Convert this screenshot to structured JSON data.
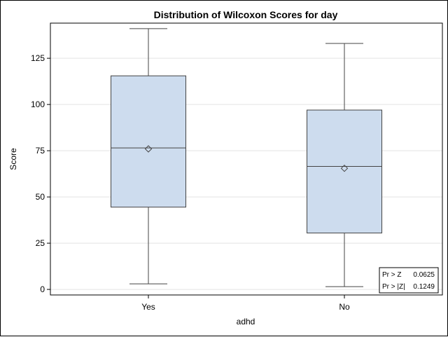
{
  "chart_data": {
    "type": "box",
    "title": "Distribution of Wilcoxon Scores for day",
    "xlabel": "adhd",
    "ylabel": "Score",
    "categories": [
      "Yes",
      "No"
    ],
    "yticks": [
      0,
      25,
      50,
      75,
      100,
      125
    ],
    "ylim": [
      -3,
      144
    ],
    "grid": "horizontal",
    "boxes": [
      {
        "category": "Yes",
        "min": 3,
        "q1": 44.5,
        "median": 76.5,
        "q3": 115.5,
        "max": 141,
        "mean": 76
      },
      {
        "category": "No",
        "min": 1.5,
        "q1": 30.5,
        "median": 66.5,
        "q3": 97,
        "max": 133,
        "mean": 65.5
      }
    ],
    "stats_box": {
      "rows": [
        {
          "label": "Pr > Z",
          "value": "0.0625"
        },
        {
          "label": "Pr > |Z|",
          "value": "0.1249"
        }
      ],
      "placement": "bottom-right"
    },
    "colors": {
      "box_fill": "#cddcee",
      "box_stroke": "#444444",
      "grid": "#e3e3e3",
      "axis": "#000000"
    }
  }
}
